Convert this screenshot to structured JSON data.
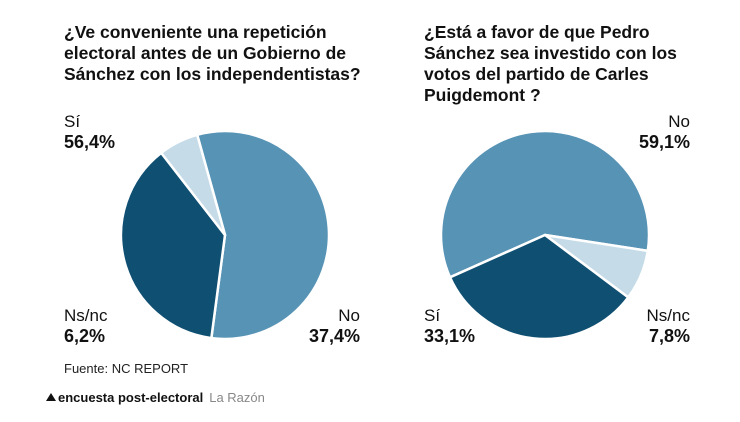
{
  "chart_data": [
    {
      "type": "pie",
      "title": "¿Ve conveniente una repetición electoral antes de un Gobierno de Sánchez con los independentistas?",
      "slices": [
        {
          "label": "Sí",
          "value": 56.4,
          "display": "56,4%",
          "color": "#5793b5"
        },
        {
          "label": "No",
          "value": 37.4,
          "display": "37,4%",
          "color": "#0f4f72"
        },
        {
          "label": "Ns/nc",
          "value": 6.2,
          "display": "6,2%",
          "color": "#c5dbe8"
        }
      ]
    },
    {
      "type": "pie",
      "title": "¿Está a favor de que Pedro Sánchez sea investido con los votos del partido de Carles Puigdemont ?",
      "slices": [
        {
          "label": "No",
          "value": 59.1,
          "display": "59,1%",
          "color": "#5793b5"
        },
        {
          "label": "Ns/nc",
          "value": 7.8,
          "display": "7,8%",
          "color": "#c5dbe8"
        },
        {
          "label": "Sí",
          "value": 33.1,
          "display": "33,1%",
          "color": "#0f4f72"
        }
      ]
    }
  ],
  "source": "Fuente: NC REPORT",
  "footer": {
    "series": "encuesta post-electoral",
    "brand": "La Razón"
  }
}
